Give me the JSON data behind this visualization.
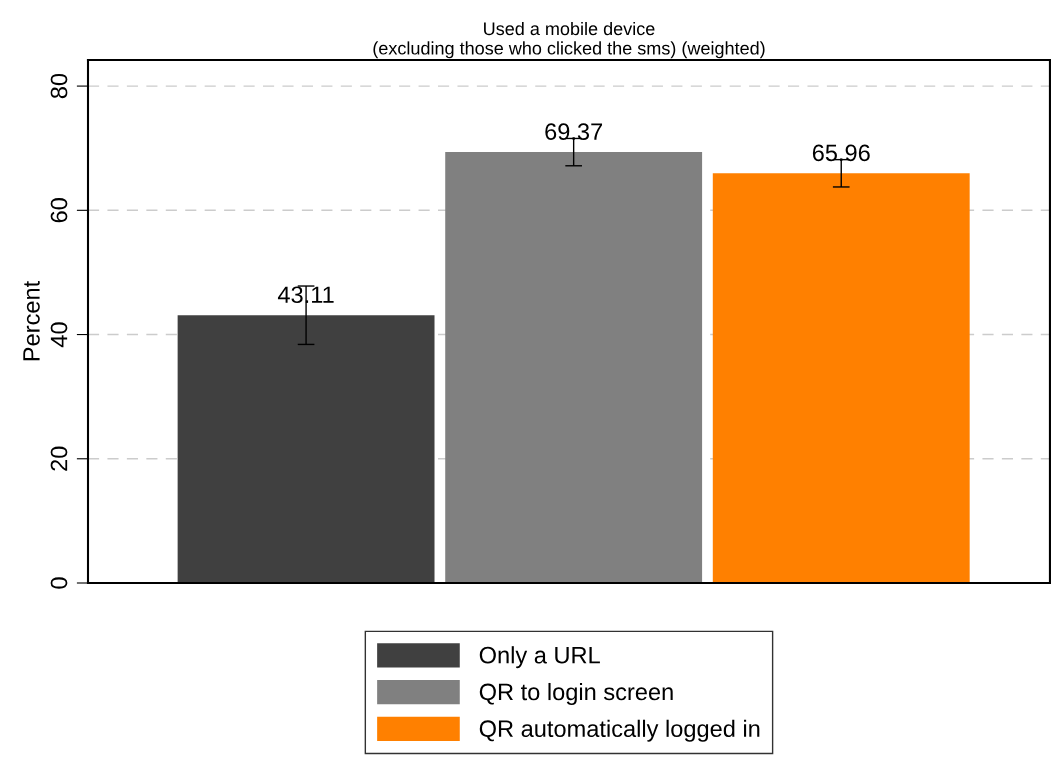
{
  "chart_data": {
    "type": "bar",
    "title": "Used a mobile device\n(excluding those who clicked the sms) (weighted)",
    "ylabel": "Percent",
    "categories": [
      null,
      null,
      null
    ],
    "series": [
      {
        "name": "Only a URL",
        "color": "#404040",
        "values": [
          43.11,
          null,
          null
        ],
        "errors": [
          4.7,
          null,
          null
        ]
      },
      {
        "name": "QR to login screen",
        "color": "#808080",
        "values": [
          null,
          69.37,
          null
        ],
        "errors": [
          null,
          2.2,
          null
        ]
      },
      {
        "name": "QR automatically logged in",
        "color": "#ff8000",
        "values": [
          null,
          null,
          65.96
        ],
        "errors": [
          null,
          null,
          2.2
        ]
      }
    ],
    "ylim": [
      0,
      84.2
    ],
    "yticks": [
      0,
      20,
      40,
      60,
      80
    ],
    "grid": "y",
    "data_labels": true,
    "legend": "bottom"
  }
}
